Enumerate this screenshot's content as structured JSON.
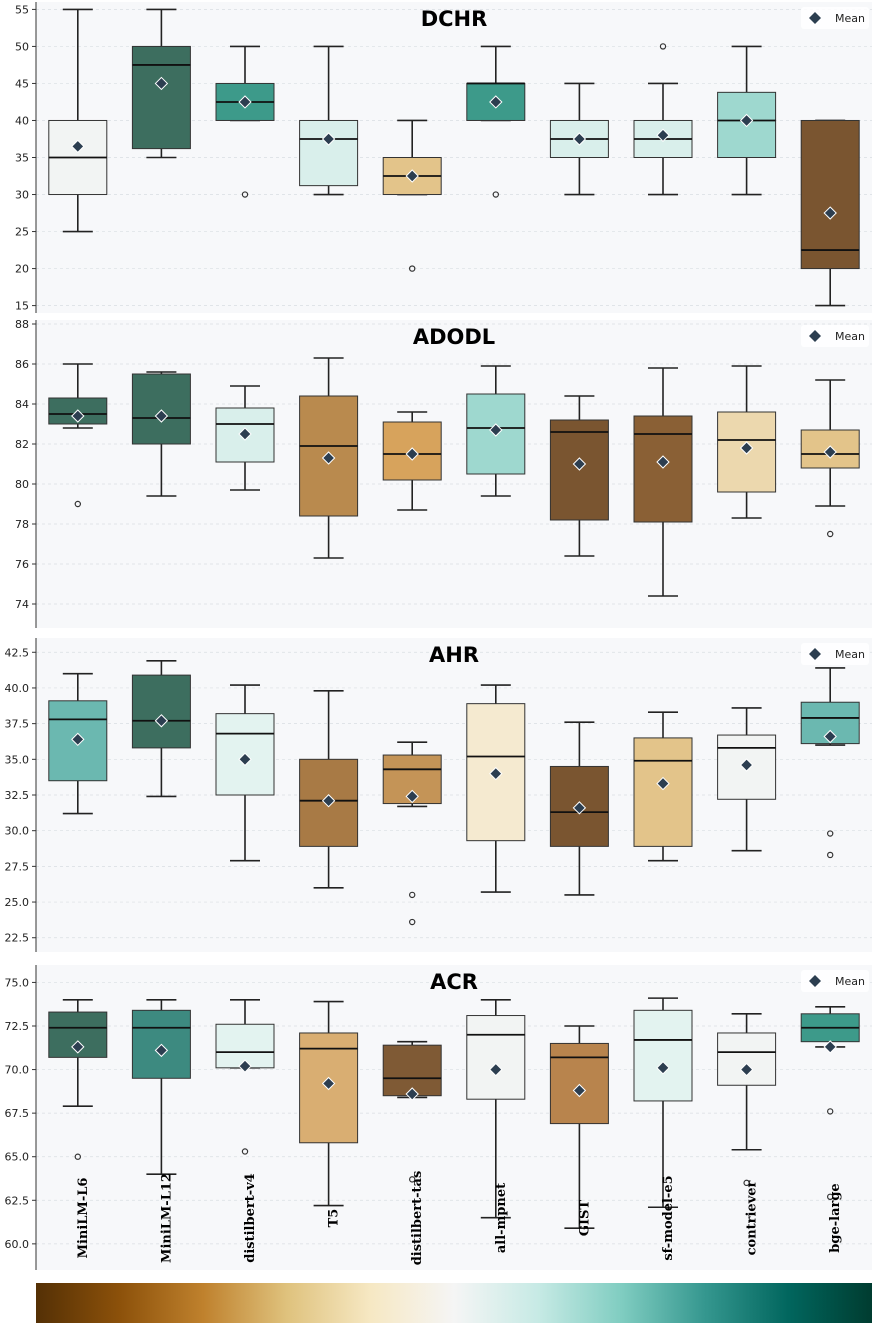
{
  "chart_data": {
    "type": "box",
    "categories": [
      "MiniLM-L6",
      "MiniLM-L12",
      "distilbert-v4",
      "T5",
      "distilbert-tas",
      "all-mpnet",
      "GIST",
      "sf-model-e5",
      "contriever",
      "bge-large"
    ],
    "legend_label": "Mean",
    "colorbar": [
      "#543005",
      "#8c510a",
      "#bf812d",
      "#dfc27d",
      "#f6e8c3",
      "#f5f5f5",
      "#c7eae5",
      "#80cdc1",
      "#35978f",
      "#01665e",
      "#003c30"
    ],
    "panels": [
      {
        "title": "DCHR",
        "ylim": [
          14,
          56
        ],
        "yticks": [
          "15",
          "20",
          "25",
          "30",
          "35",
          "40",
          "45",
          "50",
          "55"
        ],
        "ytick_values": [
          15,
          20,
          25,
          30,
          35,
          40,
          45,
          50,
          55
        ],
        "boxes": [
          {
            "q1": 30,
            "median": 35,
            "q3": 40,
            "wlo": 25,
            "whi": 55,
            "mean": 36.5,
            "outliers": [],
            "color": "#f2f4f3"
          },
          {
            "q1": 36.2,
            "median": 47.5,
            "q3": 50,
            "wlo": 35,
            "whi": 55,
            "mean": 45,
            "outliers": [],
            "color": "#3d6e5f"
          },
          {
            "q1": 40,
            "median": 42.5,
            "q3": 45,
            "wlo": 40,
            "whi": 50,
            "mean": 42.5,
            "outliers": [
              30
            ],
            "color": "#3d9a8a"
          },
          {
            "q1": 31.2,
            "median": 37.5,
            "q3": 40,
            "wlo": 30,
            "whi": 50,
            "mean": 37.5,
            "outliers": [],
            "color": "#d9efeb"
          },
          {
            "q1": 30,
            "median": 32.5,
            "q3": 35,
            "wlo": 30,
            "whi": 40,
            "mean": 32.5,
            "outliers": [
              20
            ],
            "color": "#e3c48a"
          },
          {
            "q1": 40,
            "median": 45,
            "q3": 45,
            "wlo": 40,
            "whi": 50,
            "mean": 42.5,
            "outliers": [
              30
            ],
            "color": "#3d9a8a"
          },
          {
            "q1": 35,
            "median": 37.5,
            "q3": 40,
            "wlo": 30,
            "whi": 45,
            "mean": 37.5,
            "outliers": [],
            "color": "#d9efeb"
          },
          {
            "q1": 35,
            "median": 37.5,
            "q3": 40,
            "wlo": 30,
            "whi": 45,
            "mean": 38,
            "outliers": [
              50
            ],
            "color": "#d9efeb"
          },
          {
            "q1": 35,
            "median": 40,
            "q3": 43.8,
            "wlo": 30,
            "whi": 50,
            "mean": 40,
            "outliers": [],
            "color": "#9ed8cf"
          },
          {
            "q1": 20,
            "median": 22.5,
            "q3": 40,
            "wlo": 15,
            "whi": 40,
            "mean": 27.5,
            "outliers": [],
            "color": "#7a5530"
          }
        ]
      },
      {
        "title": "ADODL",
        "ylim": [
          72.8,
          88.2
        ],
        "yticks": [
          "74",
          "76",
          "78",
          "80",
          "82",
          "84",
          "86",
          "88"
        ],
        "ytick_values": [
          74,
          76,
          78,
          80,
          82,
          84,
          86,
          88
        ],
        "boxes": [
          {
            "q1": 83,
            "median": 83.5,
            "q3": 84.3,
            "wlo": 82.8,
            "whi": 86,
            "mean": 83.4,
            "outliers": [
              79
            ],
            "color": "#3d6e5f"
          },
          {
            "q1": 82,
            "median": 83.3,
            "q3": 85.5,
            "wlo": 79.4,
            "whi": 85.6,
            "mean": 83.4,
            "outliers": [],
            "color": "#3d6e5f"
          },
          {
            "q1": 81.1,
            "median": 83,
            "q3": 83.8,
            "wlo": 79.7,
            "whi": 84.9,
            "mean": 82.5,
            "outliers": [],
            "color": "#d9efeb"
          },
          {
            "q1": 78.4,
            "median": 81.9,
            "q3": 84.4,
            "wlo": 76.3,
            "whi": 86.3,
            "mean": 81.3,
            "outliers": [],
            "color": "#b98a4e"
          },
          {
            "q1": 80.2,
            "median": 81.5,
            "q3": 83.1,
            "wlo": 78.7,
            "whi": 83.6,
            "mean": 81.5,
            "outliers": [],
            "color": "#d7a35c"
          },
          {
            "q1": 80.5,
            "median": 82.8,
            "q3": 84.5,
            "wlo": 79.4,
            "whi": 85.9,
            "mean": 82.7,
            "outliers": [],
            "color": "#9ed8cf"
          },
          {
            "q1": 78.2,
            "median": 82.6,
            "q3": 83.2,
            "wlo": 76.4,
            "whi": 84.4,
            "mean": 81,
            "outliers": [],
            "color": "#7a5530"
          },
          {
            "q1": 78.1,
            "median": 82.5,
            "q3": 83.4,
            "wlo": 74.4,
            "whi": 85.8,
            "mean": 81.1,
            "outliers": [],
            "color": "#8a6035"
          },
          {
            "q1": 79.6,
            "median": 82.2,
            "q3": 83.6,
            "wlo": 78.3,
            "whi": 85.9,
            "mean": 81.8,
            "outliers": [],
            "color": "#ecd8ae"
          },
          {
            "q1": 80.8,
            "median": 81.5,
            "q3": 82.7,
            "wlo": 78.9,
            "whi": 85.2,
            "mean": 81.6,
            "outliers": [
              77.5
            ],
            "color": "#e3c48a"
          }
        ]
      },
      {
        "title": "AHR",
        "ylim": [
          21.5,
          43.5
        ],
        "yticks": [
          "22.5",
          "25.0",
          "27.5",
          "30.0",
          "32.5",
          "35.0",
          "37.5",
          "40.0",
          "42.5"
        ],
        "ytick_values": [
          22.5,
          25,
          27.5,
          30,
          32.5,
          35,
          37.5,
          40,
          42.5
        ],
        "boxes": [
          {
            "q1": 33.5,
            "median": 37.8,
            "q3": 39.1,
            "wlo": 31.2,
            "whi": 41,
            "mean": 36.4,
            "outliers": [],
            "color": "#6bb8b0"
          },
          {
            "q1": 35.8,
            "median": 37.7,
            "q3": 40.9,
            "wlo": 32.4,
            "whi": 41.9,
            "mean": 37.7,
            "outliers": [],
            "color": "#3d6e5f"
          },
          {
            "q1": 32.5,
            "median": 36.8,
            "q3": 38.2,
            "wlo": 27.9,
            "whi": 40.2,
            "mean": 35,
            "outliers": [],
            "color": "#e3f3f0"
          },
          {
            "q1": 28.9,
            "median": 32.1,
            "q3": 35,
            "wlo": 26,
            "whi": 39.8,
            "mean": 32.1,
            "outliers": [],
            "color": "#a87a45"
          },
          {
            "q1": 31.9,
            "median": 34.3,
            "q3": 35.3,
            "wlo": 31.7,
            "whi": 36.2,
            "mean": 32.4,
            "outliers": [
              25.5,
              23.6
            ],
            "color": "#c49457"
          },
          {
            "q1": 29.3,
            "median": 35.2,
            "q3": 38.9,
            "wlo": 25.7,
            "whi": 40.2,
            "mean": 34,
            "outliers": [],
            "color": "#f5ead0"
          },
          {
            "q1": 28.9,
            "median": 31.3,
            "q3": 34.5,
            "wlo": 25.5,
            "whi": 37.6,
            "mean": 31.6,
            "outliers": [],
            "color": "#7a5530"
          },
          {
            "q1": 28.9,
            "median": 34.9,
            "q3": 36.5,
            "wlo": 27.9,
            "whi": 38.3,
            "mean": 33.3,
            "outliers": [],
            "color": "#e3c48a"
          },
          {
            "q1": 32.2,
            "median": 35.8,
            "q3": 36.7,
            "wlo": 28.6,
            "whi": 38.6,
            "mean": 34.6,
            "outliers": [],
            "color": "#f2f4f3"
          },
          {
            "q1": 36.1,
            "median": 37.9,
            "q3": 39,
            "wlo": 36,
            "whi": 41.4,
            "mean": 36.6,
            "outliers": [
              29.8,
              28.3
            ],
            "color": "#6bb8b0"
          }
        ]
      },
      {
        "title": "ACR",
        "ylim": [
          58.5,
          76
        ],
        "yticks": [
          "60.0",
          "62.5",
          "65.0",
          "67.5",
          "70.0",
          "72.5",
          "75.0"
        ],
        "ytick_values": [
          60,
          62.5,
          65,
          67.5,
          70,
          72.5,
          75
        ],
        "boxes": [
          {
            "q1": 70.7,
            "median": 72.4,
            "q3": 73.3,
            "wlo": 67.9,
            "whi": 74,
            "mean": 71.3,
            "outliers": [
              65
            ],
            "color": "#3d6e5f"
          },
          {
            "q1": 69.5,
            "median": 72.4,
            "q3": 73.4,
            "wlo": 64,
            "whi": 74,
            "mean": 71.1,
            "outliers": [],
            "color": "#3d8a80"
          },
          {
            "q1": 70.1,
            "median": 71,
            "q3": 72.6,
            "wlo": 70.1,
            "whi": 74,
            "mean": 70.2,
            "outliers": [
              65.3
            ],
            "color": "#e3f3f0"
          },
          {
            "q1": 65.8,
            "median": 71.2,
            "q3": 72.1,
            "wlo": 62.2,
            "whi": 73.9,
            "mean": 69.2,
            "outliers": [],
            "color": "#d9ae72"
          },
          {
            "q1": 68.5,
            "median": 69.5,
            "q3": 71.4,
            "wlo": 68.4,
            "whi": 71.6,
            "mean": 68.6,
            "outliers": [
              63.7
            ],
            "color": "#7f5a35"
          },
          {
            "q1": 68.3,
            "median": 72,
            "q3": 73.1,
            "wlo": 61.5,
            "whi": 74,
            "mean": 70,
            "outliers": [],
            "color": "#f2f4f3"
          },
          {
            "q1": 66.9,
            "median": 70.7,
            "q3": 71.5,
            "wlo": 60.9,
            "whi": 72.5,
            "mean": 68.8,
            "outliers": [],
            "color": "#b8844d"
          },
          {
            "q1": 68.2,
            "median": 71.7,
            "q3": 73.4,
            "wlo": 62.1,
            "whi": 74.1,
            "mean": 70.1,
            "outliers": [],
            "color": "#e3f3f0"
          },
          {
            "q1": 69.1,
            "median": 71,
            "q3": 72.1,
            "wlo": 65.4,
            "whi": 73.2,
            "mean": 70,
            "outliers": [
              63.5
            ],
            "color": "#f2f4f3"
          },
          {
            "q1": 71.6,
            "median": 72.4,
            "q3": 73.2,
            "wlo": 71.3,
            "whi": 73.6,
            "mean": 71.3,
            "outliers": [
              67.6,
              62.7
            ],
            "color": "#3d9a8a"
          }
        ]
      }
    ]
  }
}
